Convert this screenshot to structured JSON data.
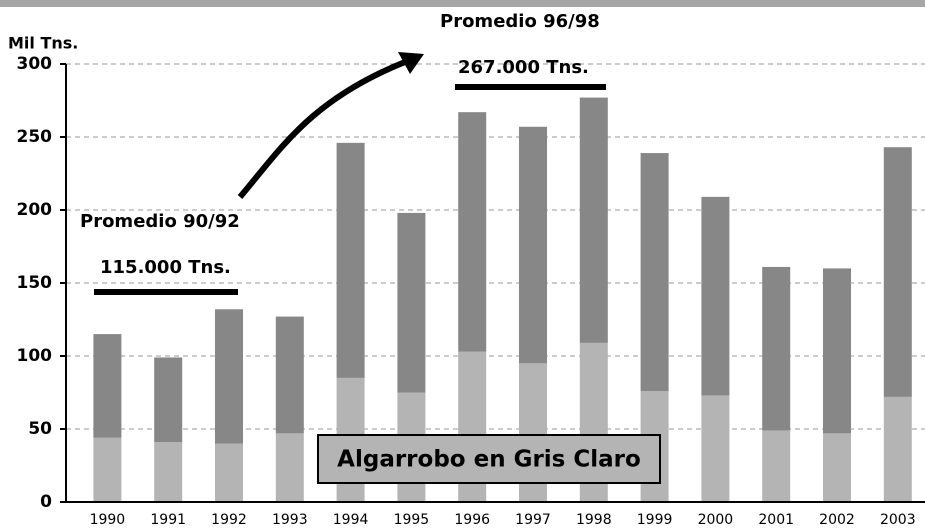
{
  "chart_data": {
    "type": "stacked_bar",
    "y_label": "Mil Tns.",
    "categories": [
      "1990",
      "1991",
      "1992",
      "1993",
      "1994",
      "1995",
      "1996",
      "1997",
      "1998",
      "1999",
      "2000",
      "2001",
      "2002",
      "2003"
    ],
    "series": [
      {
        "color": "#b4b4b4",
        "values": [
          44,
          41,
          40,
          47,
          85,
          75,
          103,
          95,
          109,
          76,
          73,
          49,
          47,
          72
        ]
      },
      {
        "color": "#878787",
        "values": [
          71,
          58,
          92,
          80,
          161,
          123,
          164,
          162,
          168,
          163,
          136,
          112,
          113,
          171
        ]
      }
    ],
    "ylim": [
      0,
      300
    ],
    "yticks": [
      0,
      50,
      100,
      150,
      200,
      250,
      300
    ],
    "grid": true,
    "annotations": [
      "Promedio 90/92",
      "115.000 Tns.",
      "Promedio 96/98",
      "267.000 Tns.",
      "Algarrobo en Gris Claro"
    ]
  }
}
